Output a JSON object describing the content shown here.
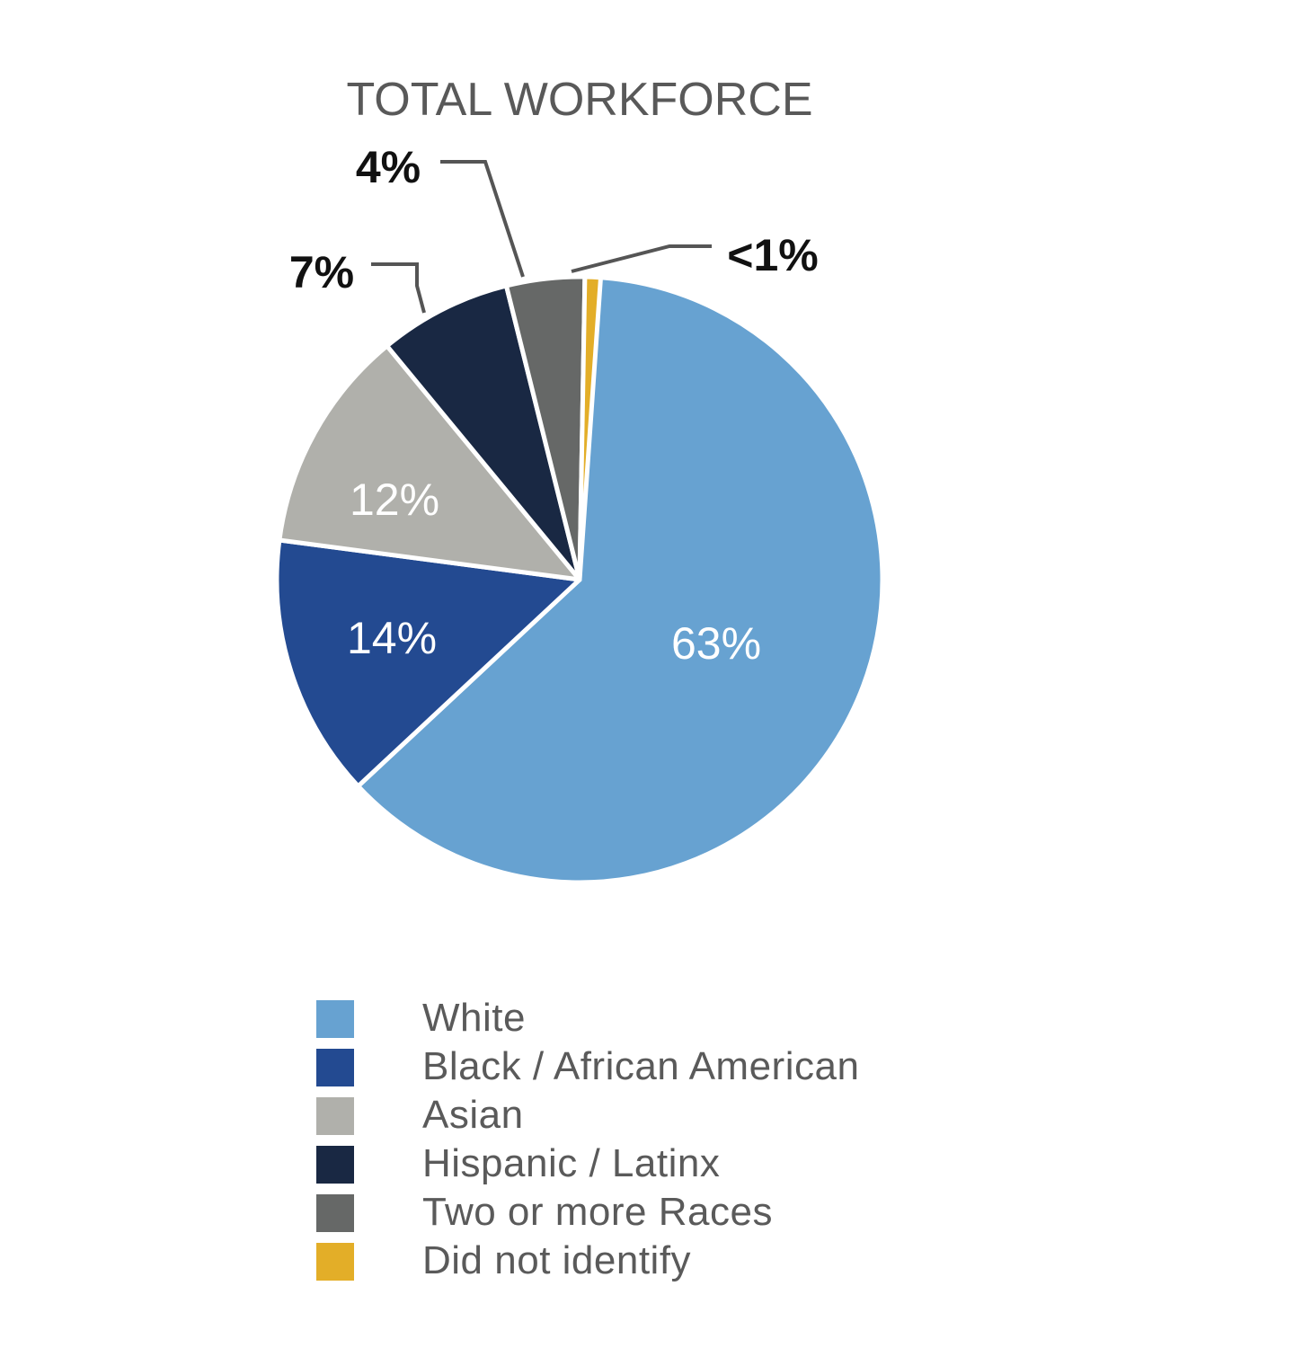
{
  "chart_data": {
    "type": "pie",
    "title": "TOTAL WORKFORCE",
    "slices": [
      {
        "label": "White",
        "value": 63,
        "display": "63%",
        "color": "#67a2d1"
      },
      {
        "label": "Black / African American",
        "value": 14,
        "display": "14%",
        "color": "#234a91"
      },
      {
        "label": "Asian",
        "value": 12,
        "display": "12%",
        "color": "#b0b0ab"
      },
      {
        "label": "Hispanic / Latinx",
        "value": 7,
        "display": "7%",
        "color": "#192843"
      },
      {
        "label": "Two or more Races",
        "value": 4,
        "display": "4%",
        "color": "#666867"
      },
      {
        "label": "Did not identify",
        "value": 1,
        "display": "<1%",
        "color": "#e3ae28"
      }
    ],
    "legend_position": "bottom"
  }
}
